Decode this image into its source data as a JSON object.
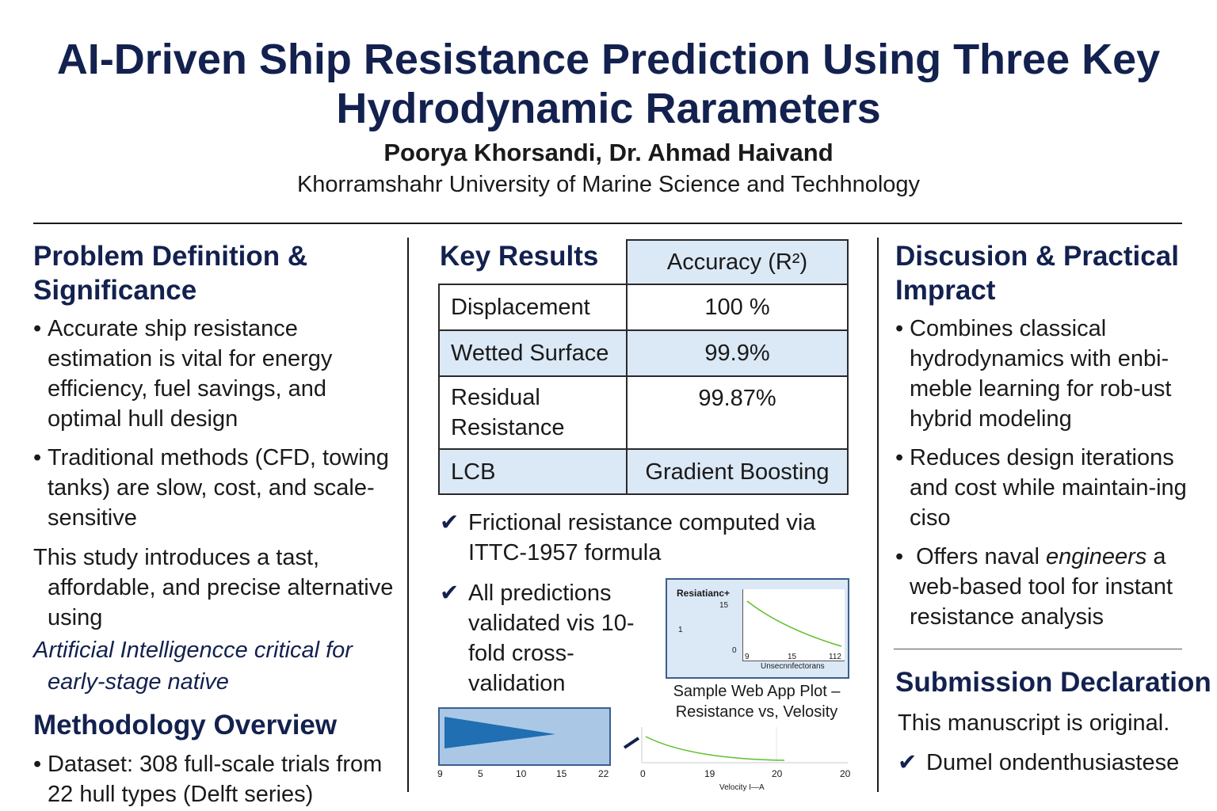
{
  "header": {
    "title": "AI-Driven Ship Resistance Prediction Using Three Key Hydrodynamic Rarameters",
    "authors": "Poorya Khorsandi, Dr. Ahmad Haivand",
    "affiliation": "Khorramshahr University of Marine Science and Techhnology"
  },
  "problem": {
    "heading": "Problem Definition & Significance",
    "bullets": [
      "Accurate ship resistance estimation is vital for energy efficiency, fuel savings, and optimal hull design",
      "Traditional methods (CFD, towing tanks) are slow, cost, and scale-sensitive"
    ],
    "paragraph": {
      "text": "This study introduces a tast, affordable, and precise alternative using",
      "emphasis": "Artificial Intelligencce critical for early-stage native"
    }
  },
  "methodology": {
    "heading": "Methodology Overview",
    "bullets": [
      "Dataset: 308 full-scale trials from 22 hull types (Delft series)"
    ]
  },
  "results": {
    "heading": "Key Results",
    "table": {
      "header": "Accuracy (R²)",
      "rows": [
        [
          "Displacement",
          "100 %"
        ],
        [
          "Wetted Surface",
          "99.9%"
        ],
        [
          "Residual Resistance",
          "99.87%"
        ],
        [
          "LCB",
          "Gradient Boosting"
        ]
      ]
    },
    "checks": [
      "Frictional resistance computed via ITTC-1957 formula",
      "All predictions validated vis 10-fold cross-validation"
    ],
    "plot": {
      "title": "Resiatianc+",
      "yticks": [
        "15",
        "1",
        "0"
      ],
      "xticks": [
        "9",
        "15",
        "112"
      ],
      "xlabel": "Unsecnnfectorans",
      "caption": "Sample Web App Plot – Resistance vs, Velosity"
    },
    "bar_plot": {
      "xticks": [
        "9",
        "5",
        "10",
        "15",
        "22"
      ]
    },
    "line_plot": {
      "xticks": [
        "0",
        "19",
        "20",
        "20"
      ],
      "xlabel": "Velocity I—A"
    }
  },
  "discussion": {
    "heading": "Discusion & Practical Impract",
    "bullets": [
      "Combines classical hydrodynamics with enbi-meble learning for rob-ust hybrid modeling",
      "Reduces design iterations and cost while maintain-ing ciso"
    ],
    "offer": {
      "text": "Offers naval",
      "emphasis": "engineers",
      "rest": "a web-based tool for instant resistance analysis"
    }
  },
  "submission": {
    "heading": "Submission Declaration",
    "statement": "This manuscript is original.",
    "check": "Dumel ondenthusiastese"
  }
}
